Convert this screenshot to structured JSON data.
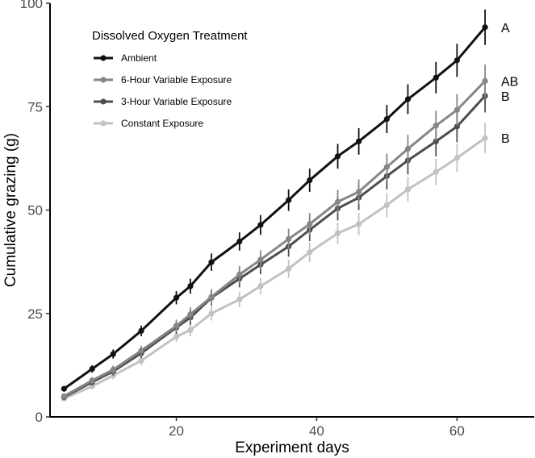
{
  "chart_data": {
    "type": "line",
    "xlabel": "Experiment days",
    "ylabel": "Cumulative grazing (g)",
    "xlim": [
      2,
      71
    ],
    "ylim": [
      0,
      100
    ],
    "xticks": [
      20,
      40,
      60
    ],
    "yticks": [
      0,
      25,
      50,
      75,
      100
    ],
    "grid": false,
    "legend": {
      "title": "Dissolved Oxygen Treatment",
      "placement": "top-left"
    },
    "x": [
      4,
      8,
      11,
      15,
      20,
      22,
      25,
      29,
      32,
      36,
      39,
      43,
      46,
      50,
      53,
      57,
      60,
      64
    ],
    "series": [
      {
        "name": "Ambient",
        "color": "#111111",
        "values": [
          6.8,
          11.6,
          15.2,
          20.8,
          28.8,
          31.6,
          37.4,
          42.4,
          46.4,
          52.4,
          57.2,
          63.0,
          66.6,
          72.0,
          76.8,
          82.0,
          86.2,
          94.2
        ],
        "errors": [
          0.7,
          0.9,
          1.1,
          1.3,
          1.6,
          1.8,
          2.1,
          2.2,
          2.4,
          2.6,
          2.8,
          3.0,
          3.2,
          3.4,
          3.6,
          3.8,
          4.0,
          4.3
        ],
        "significance": "A"
      },
      {
        "name": "6-Hour Variable Exposure",
        "color": "#868686",
        "values": [
          5.0,
          8.8,
          11.4,
          16.0,
          22.0,
          24.8,
          29.0,
          34.4,
          38.0,
          43.0,
          46.6,
          52.0,
          54.4,
          60.4,
          64.8,
          70.4,
          74.2,
          81.2
        ],
        "errors": [
          0.6,
          0.8,
          1.0,
          1.2,
          1.5,
          1.7,
          1.9,
          2.1,
          2.3,
          2.5,
          2.7,
          2.9,
          3.0,
          3.2,
          3.4,
          3.6,
          3.8,
          4.0
        ],
        "significance": "AB"
      },
      {
        "name": "3-Hour Variable Exposure",
        "color": "#4d4d4d",
        "values": [
          4.8,
          8.4,
          11.0,
          15.4,
          21.6,
          24.0,
          28.8,
          33.4,
          36.8,
          41.2,
          45.2,
          50.4,
          53.0,
          58.2,
          62.0,
          66.6,
          70.2,
          77.6
        ],
        "errors": [
          0.6,
          0.8,
          1.0,
          1.2,
          1.5,
          1.7,
          1.9,
          2.1,
          2.3,
          2.5,
          2.7,
          2.9,
          3.0,
          3.2,
          3.4,
          3.6,
          3.8,
          4.0
        ],
        "significance": "B"
      },
      {
        "name": "Constant Exposure",
        "color": "#c2c2c2",
        "values": [
          4.4,
          7.4,
          10.0,
          13.6,
          19.4,
          21.0,
          25.0,
          28.4,
          31.6,
          35.8,
          39.8,
          44.4,
          46.6,
          51.2,
          55.0,
          59.2,
          62.6,
          67.4
        ],
        "errors": [
          0.5,
          0.7,
          0.9,
          1.1,
          1.3,
          1.5,
          1.7,
          1.9,
          2.0,
          2.2,
          2.4,
          2.6,
          2.7,
          2.9,
          3.0,
          3.2,
          3.4,
          3.6
        ],
        "significance": "B"
      }
    ]
  }
}
